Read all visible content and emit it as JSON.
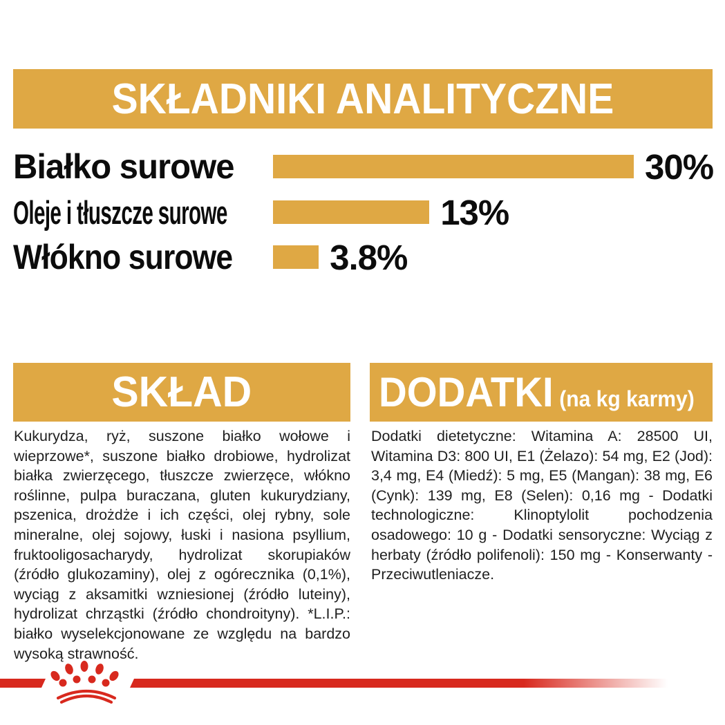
{
  "colors": {
    "gold": "#DFA844",
    "red": "#D8291E",
    "heading_text": "#FFFFFF",
    "body_text": "#1F1F1F"
  },
  "header": {
    "title": "SKŁADNIKI ANALITYCZNE"
  },
  "chart_data": {
    "type": "bar",
    "orientation": "horizontal",
    "title": "SKŁADNIKI ANALITYCZNE",
    "categories": [
      "Białko surowe",
      "Oleje i tłuszcze surowe",
      "Włókno surowe"
    ],
    "values": [
      30,
      13,
      3.8
    ],
    "value_labels": [
      "30%",
      "13%",
      "3.8%"
    ],
    "unit": "%",
    "xlim": [
      0,
      30
    ],
    "bar_color": "#DFA844",
    "grid": false,
    "legend": false
  },
  "sklad": {
    "title": "SKŁAD",
    "body": "Kukurydza, ryż, suszone białko wołowe i wieprzowe*, suszone białko drobiowe, hydrolizat białka zwierzęcego, tłuszcze zwierzęce, włókno roślinne, pulpa buraczana, gluten kukurydziany, pszenica, drożdże i ich części, olej rybny, sole mineralne, olej sojowy, łuski i nasiona psyllium, fruktooligosacharydy, hydrolizat skorupiaków (źródło glukozaminy), olej z ogórecznika (0,1%), wyciąg z aksamitki wzniesionej (źródło luteiny), hydrolizat chrząstki (źródło chondroityny). *L.I.P.: białko wyselekcjonowane ze względu na bardzo wysoką strawność."
  },
  "dodatki": {
    "title": "DODATKI",
    "subtitle": "(na kg karmy)",
    "body": "Dodatki dietetyczne: Witamina A: 28500 UI, Witamina D3: 800 UI, E1 (Żelazo): 54 mg, E2 (Jod): 3,4 mg, E4 (Miedź): 5 mg, E5 (Mangan): 38 mg, E6 (Cynk): 139 mg, E8 (Selen): 0,16 mg - Dodatki technologiczne: Klinoptylolit pochodzenia osadowego: 10 g - Dodatki sensoryczne: Wyciąg z herbaty (źródło polifenoli): 150 mg - Konserwanty - Przeciwutleniacze."
  },
  "footer": {
    "logo": "royal-canin-crown"
  }
}
